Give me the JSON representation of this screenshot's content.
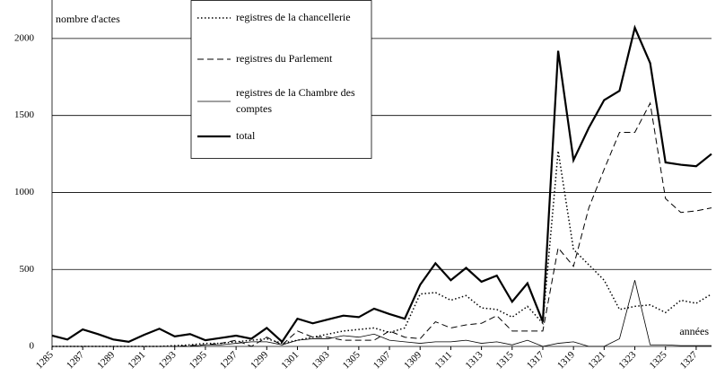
{
  "chart_data": {
    "type": "line",
    "y_label": "nombre d'actes",
    "x_label": "années",
    "x": [
      1285,
      1286,
      1287,
      1288,
      1289,
      1290,
      1291,
      1292,
      1293,
      1294,
      1295,
      1296,
      1297,
      1298,
      1299,
      1300,
      1301,
      1302,
      1303,
      1304,
      1305,
      1306,
      1307,
      1308,
      1309,
      1310,
      1311,
      1312,
      1313,
      1314,
      1315,
      1316,
      1317,
      1318,
      1319,
      1320,
      1321,
      1322,
      1323,
      1324,
      1325,
      1326,
      1327,
      1328
    ],
    "series": [
      {
        "name": "registres de la chancellerie",
        "color": "#000000",
        "line_style": "dotted",
        "values": [
          0,
          0,
          0,
          0,
          0,
          0,
          0,
          0,
          5,
          10,
          20,
          20,
          30,
          40,
          50,
          20,
          40,
          60,
          80,
          100,
          110,
          120,
          90,
          120,
          340,
          350,
          300,
          330,
          250,
          240,
          190,
          260,
          150,
          1270,
          630,
          530,
          430,
          240,
          260,
          270,
          220,
          300,
          280,
          340
        ]
      },
      {
        "name": "registres du Parlement",
        "color": "#000000",
        "line_style": "dashed",
        "values": [
          0,
          0,
          0,
          0,
          0,
          0,
          0,
          0,
          0,
          5,
          10,
          20,
          40,
          0,
          60,
          10,
          100,
          60,
          60,
          40,
          40,
          40,
          100,
          60,
          50,
          160,
          120,
          140,
          150,
          200,
          100,
          100,
          100,
          640,
          520,
          900,
          1150,
          1390,
          1390,
          1580,
          960,
          870,
          880,
          900
        ]
      },
      {
        "name": "registres de la Chambre des comptes",
        "color": "#000000",
        "line_style": "thin",
        "values": [
          0,
          0,
          0,
          0,
          0,
          0,
          0,
          0,
          0,
          0,
          10,
          10,
          20,
          30,
          30,
          10,
          40,
          50,
          50,
          70,
          60,
          80,
          40,
          30,
          20,
          30,
          30,
          40,
          20,
          30,
          10,
          40,
          0,
          20,
          30,
          0,
          0,
          50,
          430,
          10,
          10,
          5,
          5,
          5
        ]
      },
      {
        "name": "total",
        "color": "#000000",
        "line_style": "thick",
        "values": [
          70,
          45,
          110,
          80,
          45,
          30,
          75,
          115,
          65,
          80,
          40,
          55,
          70,
          50,
          120,
          30,
          180,
          150,
          175,
          200,
          190,
          245,
          210,
          180,
          400,
          540,
          430,
          510,
          420,
          460,
          290,
          410,
          160,
          1920,
          1210,
          1420,
          1600,
          1660,
          2070,
          1840,
          1195,
          1180,
          1170,
          1250
        ]
      }
    ],
    "xlim": [
      1285,
      1328
    ],
    "xticks": [
      1285,
      1287,
      1289,
      1291,
      1293,
      1295,
      1297,
      1299,
      1301,
      1303,
      1305,
      1307,
      1309,
      1311,
      1313,
      1315,
      1317,
      1319,
      1321,
      1323,
      1325,
      1327
    ],
    "ylim": [
      0,
      2250
    ],
    "yticks": [
      0,
      500,
      1000,
      1500,
      2000
    ],
    "grid": true
  }
}
